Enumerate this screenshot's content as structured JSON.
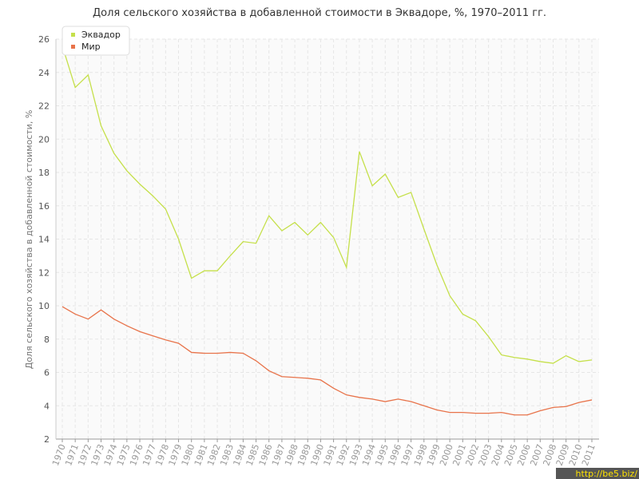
{
  "chart_data": {
    "type": "line",
    "title": "Доля сельского хозяйства в добавленной стоимости в Эквадоре, %, 1970–2011 гг.",
    "y_label": "Доля сельского хозяйства в добавленной стоимости, %",
    "x": [
      1970,
      1971,
      1972,
      1973,
      1974,
      1975,
      1976,
      1977,
      1978,
      1979,
      1980,
      1981,
      1982,
      1983,
      1984,
      1985,
      1986,
      1987,
      1988,
      1989,
      1990,
      1991,
      1992,
      1993,
      1994,
      1995,
      1996,
      1997,
      1998,
      1999,
      2000,
      2001,
      2002,
      2003,
      2004,
      2005,
      2006,
      2007,
      2008,
      2009,
      2010,
      2011
    ],
    "series": [
      {
        "name": "Эквадор",
        "color": "#c5e04a",
        "values": [
          25.6,
          23.1,
          23.85,
          20.8,
          19.15,
          18.1,
          17.3,
          16.6,
          15.8,
          14.0,
          11.65,
          12.1,
          12.1,
          13.0,
          13.85,
          13.75,
          15.4,
          14.5,
          15.0,
          14.25,
          15.0,
          14.1,
          12.3,
          19.25,
          17.2,
          17.9,
          16.5,
          16.8,
          14.6,
          12.45,
          10.6,
          9.5,
          9.1,
          8.15,
          7.05,
          6.9,
          6.8,
          6.65,
          6.55,
          7.0,
          6.65,
          6.75
        ]
      },
      {
        "name": "Мир",
        "color": "#e8734a",
        "values": [
          9.95,
          9.5,
          9.2,
          9.75,
          9.2,
          8.8,
          8.45,
          8.2,
          7.95,
          7.75,
          7.2,
          7.15,
          7.15,
          7.2,
          7.15,
          6.7,
          6.1,
          5.75,
          5.7,
          5.65,
          5.55,
          5.05,
          4.65,
          4.5,
          4.4,
          4.25,
          4.4,
          4.25,
          4.0,
          3.75,
          3.6,
          3.6,
          3.55,
          3.55,
          3.6,
          3.45,
          3.45,
          3.7,
          3.9,
          3.95,
          4.2,
          4.35
        ]
      }
    ],
    "xlim": [
      1970,
      2011
    ],
    "xticks": [
      1970,
      1971,
      1972,
      1973,
      1974,
      1975,
      1976,
      1977,
      1978,
      1979,
      1980,
      1981,
      1982,
      1983,
      1984,
      1985,
      1986,
      1987,
      1988,
      1989,
      1990,
      1991,
      1992,
      1993,
      1994,
      1995,
      1996,
      1997,
      1998,
      1999,
      2000,
      2001,
      2002,
      2003,
      2004,
      2005,
      2006,
      2007,
      2008,
      2009,
      2010,
      2011
    ],
    "ylim": [
      2,
      26
    ],
    "yticks": [
      2,
      4,
      6,
      8,
      10,
      12,
      14,
      16,
      18,
      20,
      22,
      24,
      26
    ],
    "grid": true,
    "legend": "top-left",
    "watermark": "http://be5.biz/"
  }
}
